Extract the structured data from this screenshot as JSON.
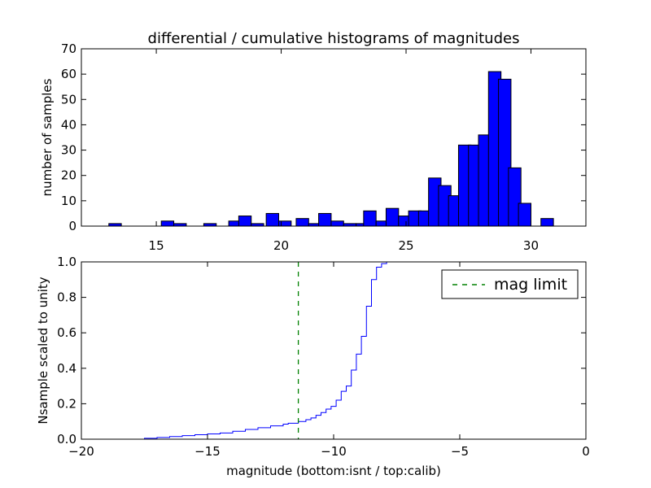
{
  "figure": {
    "background": "#ffffff"
  },
  "chart_data": [
    {
      "type": "bar",
      "title": "differential / cumulative histograms of magnitudes",
      "ylabel": "number of samples",
      "xlabel": "",
      "xlim": [
        12.0,
        32.2
      ],
      "ylim": [
        0,
        70
      ],
      "xticks": [
        15,
        20,
        25,
        30
      ],
      "yticks": [
        0,
        10,
        20,
        30,
        40,
        50,
        60,
        70
      ],
      "grid": false,
      "bar_color": "#0000ff",
      "bin_width": 0.5,
      "bins": [
        {
          "x": 13.1,
          "value": 1
        },
        {
          "x": 15.2,
          "value": 2
        },
        {
          "x": 15.7,
          "value": 1
        },
        {
          "x": 16.9,
          "value": 1
        },
        {
          "x": 17.9,
          "value": 2
        },
        {
          "x": 18.3,
          "value": 4
        },
        {
          "x": 18.8,
          "value": 1
        },
        {
          "x": 19.4,
          "value": 5
        },
        {
          "x": 19.9,
          "value": 2
        },
        {
          "x": 20.6,
          "value": 3
        },
        {
          "x": 21.1,
          "value": 1
        },
        {
          "x": 21.5,
          "value": 5
        },
        {
          "x": 22.0,
          "value": 2
        },
        {
          "x": 22.5,
          "value": 1
        },
        {
          "x": 23.0,
          "value": 1
        },
        {
          "x": 23.3,
          "value": 6
        },
        {
          "x": 23.8,
          "value": 2
        },
        {
          "x": 24.2,
          "value": 7
        },
        {
          "x": 24.7,
          "value": 4
        },
        {
          "x": 25.1,
          "value": 6
        },
        {
          "x": 25.5,
          "value": 6
        },
        {
          "x": 25.9,
          "value": 19
        },
        {
          "x": 26.3,
          "value": 16
        },
        {
          "x": 26.7,
          "value": 12
        },
        {
          "x": 27.1,
          "value": 32
        },
        {
          "x": 27.5,
          "value": 32
        },
        {
          "x": 27.9,
          "value": 36
        },
        {
          "x": 28.3,
          "value": 61
        },
        {
          "x": 28.7,
          "value": 58
        },
        {
          "x": 29.1,
          "value": 23
        },
        {
          "x": 29.5,
          "value": 9
        },
        {
          "x": 30.4,
          "value": 3
        }
      ]
    },
    {
      "type": "line",
      "ylabel": "Nsample scaled to unity",
      "xlabel": "magnitude (bottom:isnt / top:calib)",
      "xlim": [
        -20,
        0
      ],
      "ylim": [
        0.0,
        1.0
      ],
      "xticks": [
        -20,
        -15,
        -10,
        -5,
        0
      ],
      "ytick_labels": [
        "0.0",
        "0.2",
        "0.4",
        "0.6",
        "0.8",
        "1.0"
      ],
      "yticks": [
        0.0,
        0.2,
        0.4,
        0.6,
        0.8,
        1.0
      ],
      "grid": false,
      "legend_position": "top-right",
      "series": [
        {
          "style": "steps",
          "color": "#0000ff",
          "x": [
            -20.0,
            -17.5,
            -17.0,
            -16.5,
            -16.0,
            -15.5,
            -15.0,
            -14.5,
            -14.0,
            -13.5,
            -13.0,
            -12.5,
            -12.0,
            -11.8,
            -11.6,
            -11.4,
            -11.1,
            -10.9,
            -10.7,
            -10.5,
            -10.3,
            -10.1,
            -9.9,
            -9.7,
            -9.5,
            -9.3,
            -9.1,
            -8.9,
            -8.7,
            -8.5,
            -8.3,
            -8.1,
            -7.9,
            -7.7,
            -7.5,
            0.0
          ],
          "y": [
            0.0,
            0.005,
            0.01,
            0.015,
            0.02,
            0.025,
            0.03,
            0.035,
            0.045,
            0.055,
            0.065,
            0.075,
            0.085,
            0.09,
            0.09,
            0.1,
            0.11,
            0.12,
            0.135,
            0.15,
            0.17,
            0.185,
            0.22,
            0.27,
            0.3,
            0.39,
            0.48,
            0.58,
            0.75,
            0.9,
            0.97,
            0.99,
            1.0,
            1.0,
            1.0,
            1.0
          ]
        },
        {
          "name": "mag limit",
          "style": "vline-dashed",
          "color": "#008000",
          "x": -11.4
        }
      ]
    }
  ]
}
